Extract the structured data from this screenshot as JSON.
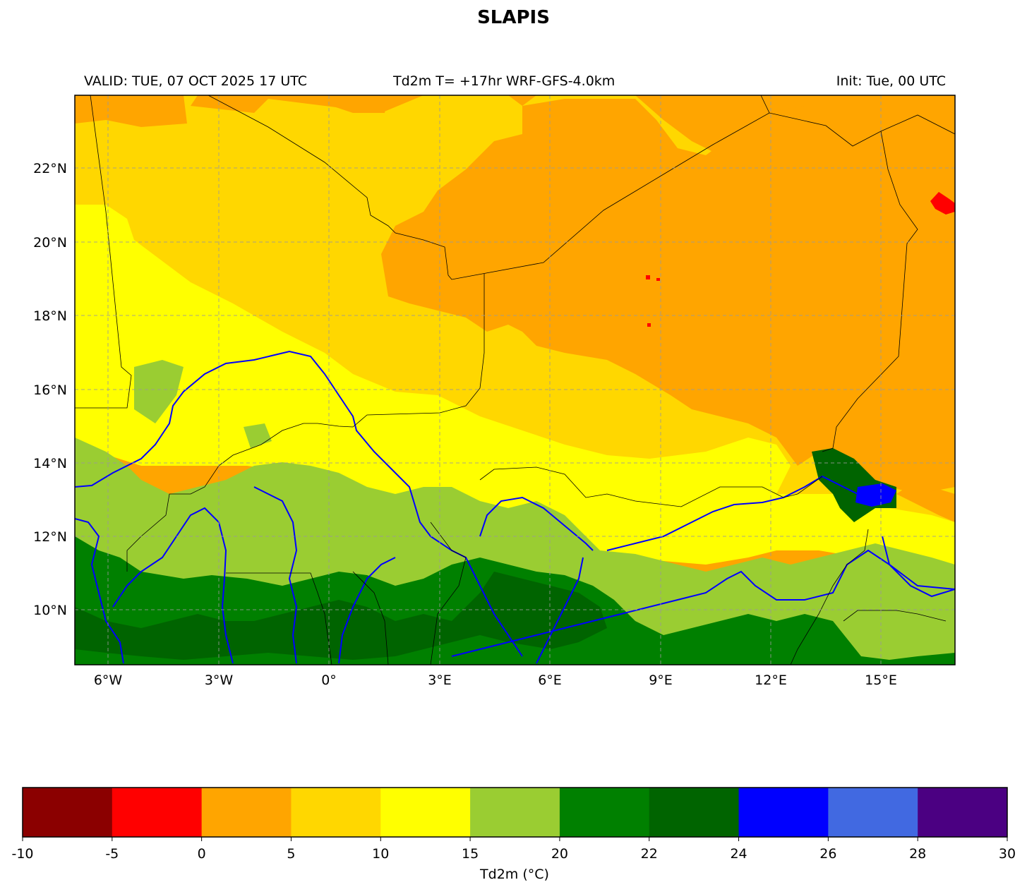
{
  "title": "SLAPIS",
  "header": {
    "valid": "VALID: TUE, 07 OCT 2025 17 UTC",
    "field": "Td2m T= +17hr WRF-GFS-4.0km",
    "init": "Init: Tue, 00 UTC"
  },
  "map": {
    "lat_ticks": [
      "22°N",
      "20°N",
      "18°N",
      "16°N",
      "14°N",
      "12°N",
      "10°N"
    ],
    "lon_ticks": [
      "6°W",
      "3°W",
      "0°",
      "3°E",
      "6°E",
      "9°E",
      "12°E",
      "15°E"
    ],
    "extent": {
      "lon": [
        -6.9,
        17.0
      ],
      "lat": [
        8.5,
        24.0
      ]
    },
    "grid": true
  },
  "colorbar": {
    "label": "Td2m (°C)",
    "ticks": [
      "-10",
      "-5",
      "0",
      "5",
      "10",
      "15",
      "20",
      "22",
      "24",
      "26",
      "28",
      "30"
    ],
    "colors": [
      "#8b0000",
      "#ff0000",
      "#ffa500",
      "#ffd700",
      "#ffff00",
      "#9acd32",
      "#008000",
      "#006400",
      "#0000ff",
      "#4169e1",
      "#4b0082"
    ]
  }
}
